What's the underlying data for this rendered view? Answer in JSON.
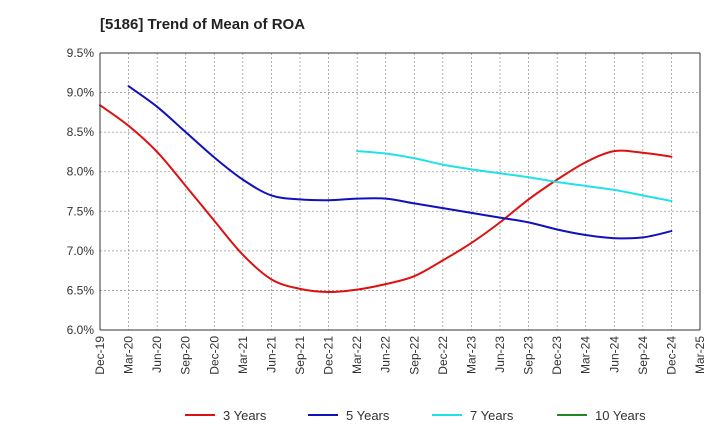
{
  "chart_data": {
    "type": "line",
    "title": "[5186]  Trend of Mean of ROA",
    "xlabel": "",
    "ylabel": "",
    "x": [
      "Dec-19",
      "Mar-20",
      "Jun-20",
      "Sep-20",
      "Dec-20",
      "Mar-21",
      "Jun-21",
      "Sep-21",
      "Dec-21",
      "Mar-22",
      "Jun-22",
      "Sep-22",
      "Dec-22",
      "Mar-23",
      "Jun-23",
      "Sep-23",
      "Dec-23",
      "Mar-24",
      "Jun-24",
      "Sep-24",
      "Dec-24",
      "Mar-25"
    ],
    "y_ticks": [
      "6.0%",
      "6.5%",
      "7.0%",
      "7.5%",
      "8.0%",
      "8.5%",
      "9.0%",
      "9.5%"
    ],
    "ylim": [
      6.0,
      9.5
    ],
    "grid": true,
    "legend_position": "bottom",
    "series": [
      {
        "name": "3 Years",
        "color": "#dd1111",
        "values": [
          8.84,
          8.58,
          8.25,
          7.82,
          7.38,
          6.95,
          6.64,
          6.52,
          6.48,
          6.51,
          6.58,
          6.68,
          6.88,
          7.1,
          7.36,
          7.65,
          7.9,
          8.12,
          8.26,
          8.24,
          8.19,
          null
        ]
      },
      {
        "name": "5 Years",
        "color": "#1111bb",
        "values": [
          null,
          9.08,
          8.82,
          8.5,
          8.18,
          7.9,
          7.7,
          7.65,
          7.64,
          7.66,
          7.66,
          7.6,
          7.54,
          7.48,
          7.42,
          7.36,
          7.27,
          7.2,
          7.16,
          7.17,
          7.25,
          null
        ]
      },
      {
        "name": "7 Years",
        "color": "#22e0e8",
        "values": [
          null,
          null,
          null,
          null,
          null,
          null,
          null,
          null,
          null,
          8.26,
          8.23,
          8.17,
          8.09,
          8.03,
          7.98,
          7.93,
          7.87,
          7.82,
          7.77,
          7.7,
          7.63,
          null
        ]
      },
      {
        "name": "10 Years",
        "color": "#228822",
        "values": [
          null,
          null,
          null,
          null,
          null,
          null,
          null,
          null,
          null,
          null,
          null,
          null,
          null,
          null,
          null,
          null,
          null,
          null,
          null,
          null,
          null,
          null
        ]
      }
    ]
  }
}
